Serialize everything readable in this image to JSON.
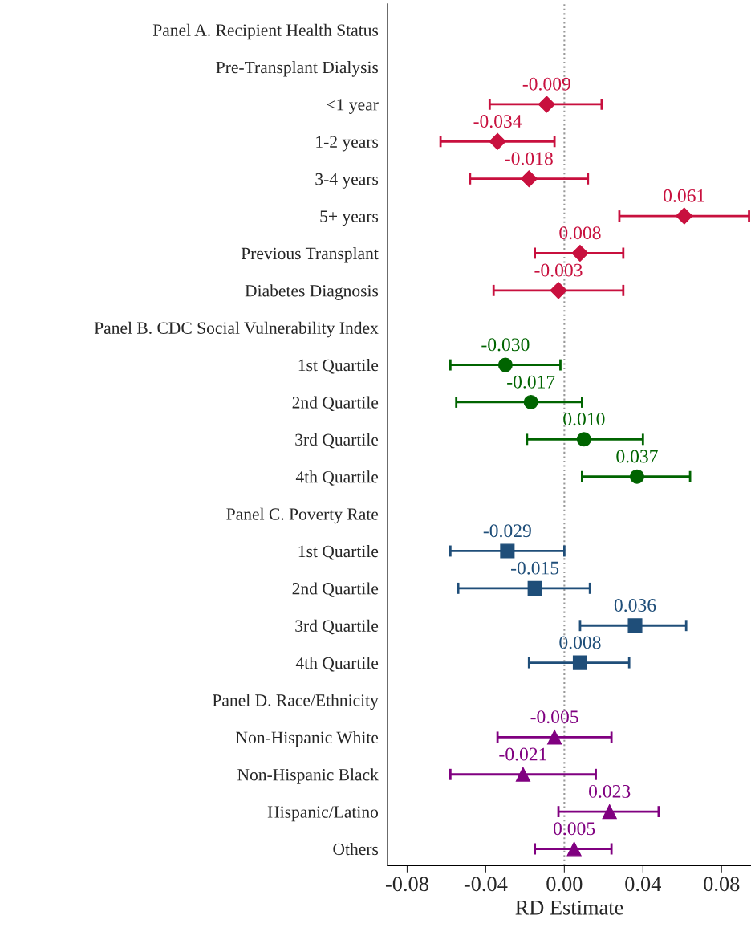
{
  "chart_data": {
    "type": "scatter",
    "orientation": "horizontal",
    "xlabel": "RD Estimate",
    "categories": [
      "Panel A. Recipient Health Status",
      "Pre-Transplant Dialysis",
      "<1 year",
      "1-2 years",
      "3-4 years",
      "5+ years",
      "Previous Transplant",
      "Diabetes Diagnosis",
      "Panel B. CDC Social Vulnerability Index",
      "1st Quartile",
      "2nd Quartile",
      "3rd Quartile",
      "4th Quartile",
      "Panel C. Poverty Rate",
      "1st Quartile",
      "2nd Quartile",
      "3rd Quartile",
      "4th Quartile",
      "Panel D. Race/Ethnicity",
      "Non-Hispanic White",
      "Non-Hispanic Black",
      "Hispanic/Latino",
      "Others"
    ],
    "series": [
      {
        "color": "#c8103e",
        "marker": "diamond",
        "values": [
          null,
          null,
          -0.009,
          -0.034,
          -0.018,
          0.061,
          0.008,
          -0.003,
          null,
          null,
          null,
          null,
          null,
          null,
          null,
          null,
          null,
          null,
          null,
          null,
          null,
          null,
          null
        ],
        "errors": [
          null,
          null,
          [
            -0.038,
            0.019
          ],
          [
            -0.063,
            -0.005
          ],
          [
            -0.048,
            0.012
          ],
          [
            0.028,
            0.094
          ],
          [
            -0.015,
            0.03
          ],
          [
            -0.036,
            0.03
          ],
          null,
          null,
          null,
          null,
          null,
          null,
          null,
          null,
          null,
          null,
          null,
          null,
          null,
          null,
          null
        ],
        "value_labels": [
          null,
          null,
          "-0.009",
          "-0.034",
          "-0.018",
          "0.061",
          "0.008",
          "-0.003",
          null,
          null,
          null,
          null,
          null,
          null,
          null,
          null,
          null,
          null,
          null,
          null,
          null,
          null,
          null
        ]
      },
      {
        "color": "#006400",
        "marker": "circle",
        "values": [
          null,
          null,
          null,
          null,
          null,
          null,
          null,
          null,
          null,
          -0.03,
          -0.017,
          0.01,
          0.037,
          null,
          null,
          null,
          null,
          null,
          null,
          null,
          null,
          null,
          null
        ],
        "errors": [
          null,
          null,
          null,
          null,
          null,
          null,
          null,
          null,
          null,
          [
            -0.058,
            -0.002
          ],
          [
            -0.055,
            0.009
          ],
          [
            -0.019,
            0.04
          ],
          [
            0.009,
            0.064
          ],
          null,
          null,
          null,
          null,
          null,
          null,
          null,
          null,
          null,
          null
        ],
        "value_labels": [
          null,
          null,
          null,
          null,
          null,
          null,
          null,
          null,
          null,
          "-0.030",
          "-0.017",
          "0.010",
          "0.037",
          null,
          null,
          null,
          null,
          null,
          null,
          null,
          null,
          null,
          null
        ]
      },
      {
        "color": "#1f4e79",
        "marker": "square",
        "values": [
          null,
          null,
          null,
          null,
          null,
          null,
          null,
          null,
          null,
          null,
          null,
          null,
          null,
          null,
          -0.029,
          -0.015,
          0.036,
          0.008,
          null,
          null,
          null,
          null,
          null
        ],
        "errors": [
          null,
          null,
          null,
          null,
          null,
          null,
          null,
          null,
          null,
          null,
          null,
          null,
          null,
          null,
          [
            -0.058,
            0.0
          ],
          [
            -0.054,
            0.013
          ],
          [
            0.008,
            0.062
          ],
          [
            -0.018,
            0.033
          ],
          null,
          null,
          null,
          null,
          null
        ],
        "value_labels": [
          null,
          null,
          null,
          null,
          null,
          null,
          null,
          null,
          null,
          null,
          null,
          null,
          null,
          null,
          "-0.029",
          "-0.015",
          "0.036",
          "0.008",
          null,
          null,
          null,
          null,
          null
        ]
      },
      {
        "color": "#800080",
        "marker": "triangle",
        "values": [
          null,
          null,
          null,
          null,
          null,
          null,
          null,
          null,
          null,
          null,
          null,
          null,
          null,
          null,
          null,
          null,
          null,
          null,
          null,
          -0.005,
          -0.021,
          0.023,
          0.005
        ],
        "errors": [
          null,
          null,
          null,
          null,
          null,
          null,
          null,
          null,
          null,
          null,
          null,
          null,
          null,
          null,
          null,
          null,
          null,
          null,
          null,
          [
            -0.034,
            0.024
          ],
          [
            -0.058,
            0.016
          ],
          [
            -0.003,
            0.048
          ],
          [
            -0.015,
            0.024
          ]
        ],
        "value_labels": [
          null,
          null,
          null,
          null,
          null,
          null,
          null,
          null,
          null,
          null,
          null,
          null,
          null,
          null,
          null,
          null,
          null,
          null,
          null,
          "-0.005",
          "-0.021",
          "0.023",
          "0.005"
        ]
      }
    ],
    "xlim": [
      -0.09,
      0.095
    ],
    "xticks": [
      {
        "value": -0.08,
        "label": "-0.08"
      },
      {
        "value": -0.04,
        "label": "-0.04"
      },
      {
        "value": 0,
        "label": "0.00"
      },
      {
        "value": 0.04,
        "label": "0.04"
      },
      {
        "value": 0.08,
        "label": "0.08"
      }
    ],
    "ref_lines": [
      {
        "axis": "x",
        "value": 0,
        "color": "#999999",
        "line_style": "dotted"
      }
    ],
    "grid": false,
    "legend": false
  }
}
